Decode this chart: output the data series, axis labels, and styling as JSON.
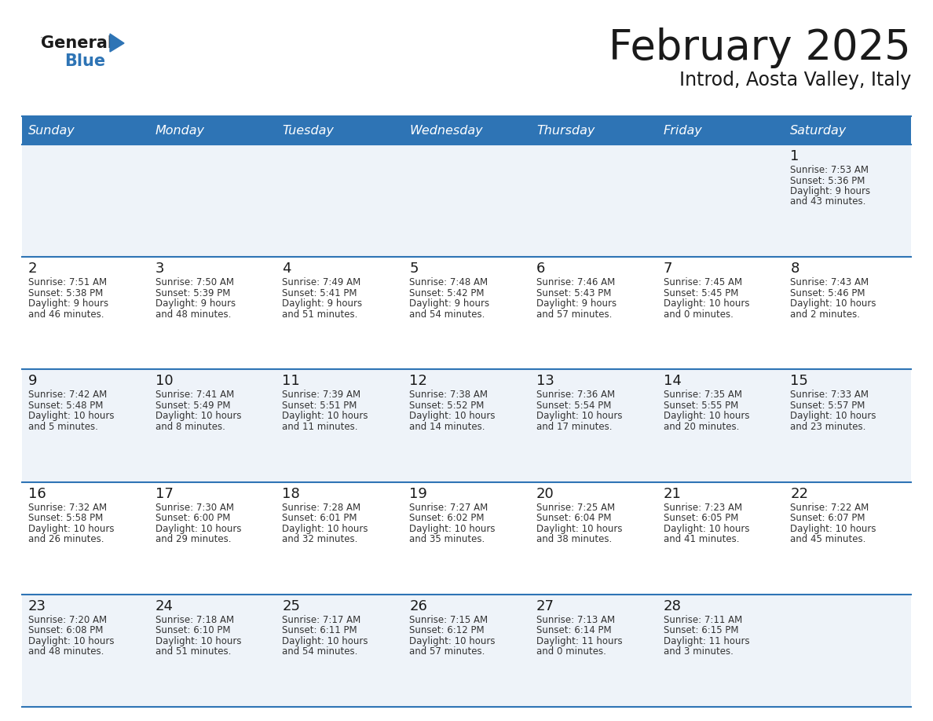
{
  "title": "February 2025",
  "subtitle": "Introd, Aosta Valley, Italy",
  "header_bg": "#2E74B5",
  "header_text_color": "#FFFFFF",
  "day_names": [
    "Sunday",
    "Monday",
    "Tuesday",
    "Wednesday",
    "Thursday",
    "Friday",
    "Saturday"
  ],
  "days": [
    {
      "day": 1,
      "col": 6,
      "row": 0,
      "sunrise": "7:53 AM",
      "sunset": "5:36 PM",
      "daylight_line1": "9 hours",
      "daylight_line2": "and 43 minutes."
    },
    {
      "day": 2,
      "col": 0,
      "row": 1,
      "sunrise": "7:51 AM",
      "sunset": "5:38 PM",
      "daylight_line1": "9 hours",
      "daylight_line2": "and 46 minutes."
    },
    {
      "day": 3,
      "col": 1,
      "row": 1,
      "sunrise": "7:50 AM",
      "sunset": "5:39 PM",
      "daylight_line1": "9 hours",
      "daylight_line2": "and 48 minutes."
    },
    {
      "day": 4,
      "col": 2,
      "row": 1,
      "sunrise": "7:49 AM",
      "sunset": "5:41 PM",
      "daylight_line1": "9 hours",
      "daylight_line2": "and 51 minutes."
    },
    {
      "day": 5,
      "col": 3,
      "row": 1,
      "sunrise": "7:48 AM",
      "sunset": "5:42 PM",
      "daylight_line1": "9 hours",
      "daylight_line2": "and 54 minutes."
    },
    {
      "day": 6,
      "col": 4,
      "row": 1,
      "sunrise": "7:46 AM",
      "sunset": "5:43 PM",
      "daylight_line1": "9 hours",
      "daylight_line2": "and 57 minutes."
    },
    {
      "day": 7,
      "col": 5,
      "row": 1,
      "sunrise": "7:45 AM",
      "sunset": "5:45 PM",
      "daylight_line1": "10 hours",
      "daylight_line2": "and 0 minutes."
    },
    {
      "day": 8,
      "col": 6,
      "row": 1,
      "sunrise": "7:43 AM",
      "sunset": "5:46 PM",
      "daylight_line1": "10 hours",
      "daylight_line2": "and 2 minutes."
    },
    {
      "day": 9,
      "col": 0,
      "row": 2,
      "sunrise": "7:42 AM",
      "sunset": "5:48 PM",
      "daylight_line1": "10 hours",
      "daylight_line2": "and 5 minutes."
    },
    {
      "day": 10,
      "col": 1,
      "row": 2,
      "sunrise": "7:41 AM",
      "sunset": "5:49 PM",
      "daylight_line1": "10 hours",
      "daylight_line2": "and 8 minutes."
    },
    {
      "day": 11,
      "col": 2,
      "row": 2,
      "sunrise": "7:39 AM",
      "sunset": "5:51 PM",
      "daylight_line1": "10 hours",
      "daylight_line2": "and 11 minutes."
    },
    {
      "day": 12,
      "col": 3,
      "row": 2,
      "sunrise": "7:38 AM",
      "sunset": "5:52 PM",
      "daylight_line1": "10 hours",
      "daylight_line2": "and 14 minutes."
    },
    {
      "day": 13,
      "col": 4,
      "row": 2,
      "sunrise": "7:36 AM",
      "sunset": "5:54 PM",
      "daylight_line1": "10 hours",
      "daylight_line2": "and 17 minutes."
    },
    {
      "day": 14,
      "col": 5,
      "row": 2,
      "sunrise": "7:35 AM",
      "sunset": "5:55 PM",
      "daylight_line1": "10 hours",
      "daylight_line2": "and 20 minutes."
    },
    {
      "day": 15,
      "col": 6,
      "row": 2,
      "sunrise": "7:33 AM",
      "sunset": "5:57 PM",
      "daylight_line1": "10 hours",
      "daylight_line2": "and 23 minutes."
    },
    {
      "day": 16,
      "col": 0,
      "row": 3,
      "sunrise": "7:32 AM",
      "sunset": "5:58 PM",
      "daylight_line1": "10 hours",
      "daylight_line2": "and 26 minutes."
    },
    {
      "day": 17,
      "col": 1,
      "row": 3,
      "sunrise": "7:30 AM",
      "sunset": "6:00 PM",
      "daylight_line1": "10 hours",
      "daylight_line2": "and 29 minutes."
    },
    {
      "day": 18,
      "col": 2,
      "row": 3,
      "sunrise": "7:28 AM",
      "sunset": "6:01 PM",
      "daylight_line1": "10 hours",
      "daylight_line2": "and 32 minutes."
    },
    {
      "day": 19,
      "col": 3,
      "row": 3,
      "sunrise": "7:27 AM",
      "sunset": "6:02 PM",
      "daylight_line1": "10 hours",
      "daylight_line2": "and 35 minutes."
    },
    {
      "day": 20,
      "col": 4,
      "row": 3,
      "sunrise": "7:25 AM",
      "sunset": "6:04 PM",
      "daylight_line1": "10 hours",
      "daylight_line2": "and 38 minutes."
    },
    {
      "day": 21,
      "col": 5,
      "row": 3,
      "sunrise": "7:23 AM",
      "sunset": "6:05 PM",
      "daylight_line1": "10 hours",
      "daylight_line2": "and 41 minutes."
    },
    {
      "day": 22,
      "col": 6,
      "row": 3,
      "sunrise": "7:22 AM",
      "sunset": "6:07 PM",
      "daylight_line1": "10 hours",
      "daylight_line2": "and 45 minutes."
    },
    {
      "day": 23,
      "col": 0,
      "row": 4,
      "sunrise": "7:20 AM",
      "sunset": "6:08 PM",
      "daylight_line1": "10 hours",
      "daylight_line2": "and 48 minutes."
    },
    {
      "day": 24,
      "col": 1,
      "row": 4,
      "sunrise": "7:18 AM",
      "sunset": "6:10 PM",
      "daylight_line1": "10 hours",
      "daylight_line2": "and 51 minutes."
    },
    {
      "day": 25,
      "col": 2,
      "row": 4,
      "sunrise": "7:17 AM",
      "sunset": "6:11 PM",
      "daylight_line1": "10 hours",
      "daylight_line2": "and 54 minutes."
    },
    {
      "day": 26,
      "col": 3,
      "row": 4,
      "sunrise": "7:15 AM",
      "sunset": "6:12 PM",
      "daylight_line1": "10 hours",
      "daylight_line2": "and 57 minutes."
    },
    {
      "day": 27,
      "col": 4,
      "row": 4,
      "sunrise": "7:13 AM",
      "sunset": "6:14 PM",
      "daylight_line1": "11 hours",
      "daylight_line2": "and 0 minutes."
    },
    {
      "day": 28,
      "col": 5,
      "row": 4,
      "sunrise": "7:11 AM",
      "sunset": "6:15 PM",
      "daylight_line1": "11 hours",
      "daylight_line2": "and 3 minutes."
    }
  ],
  "logo_color_general": "#1A1A1A",
  "logo_color_blue": "#2E74B5",
  "logo_triangle_color": "#2E74B5",
  "title_color": "#1A1A1A",
  "subtitle_color": "#1A1A1A",
  "cell_text_color": "#333333",
  "day_num_color": "#1A1A1A",
  "even_row_bg": "#EEF3F9",
  "odd_row_bg": "#FFFFFF"
}
